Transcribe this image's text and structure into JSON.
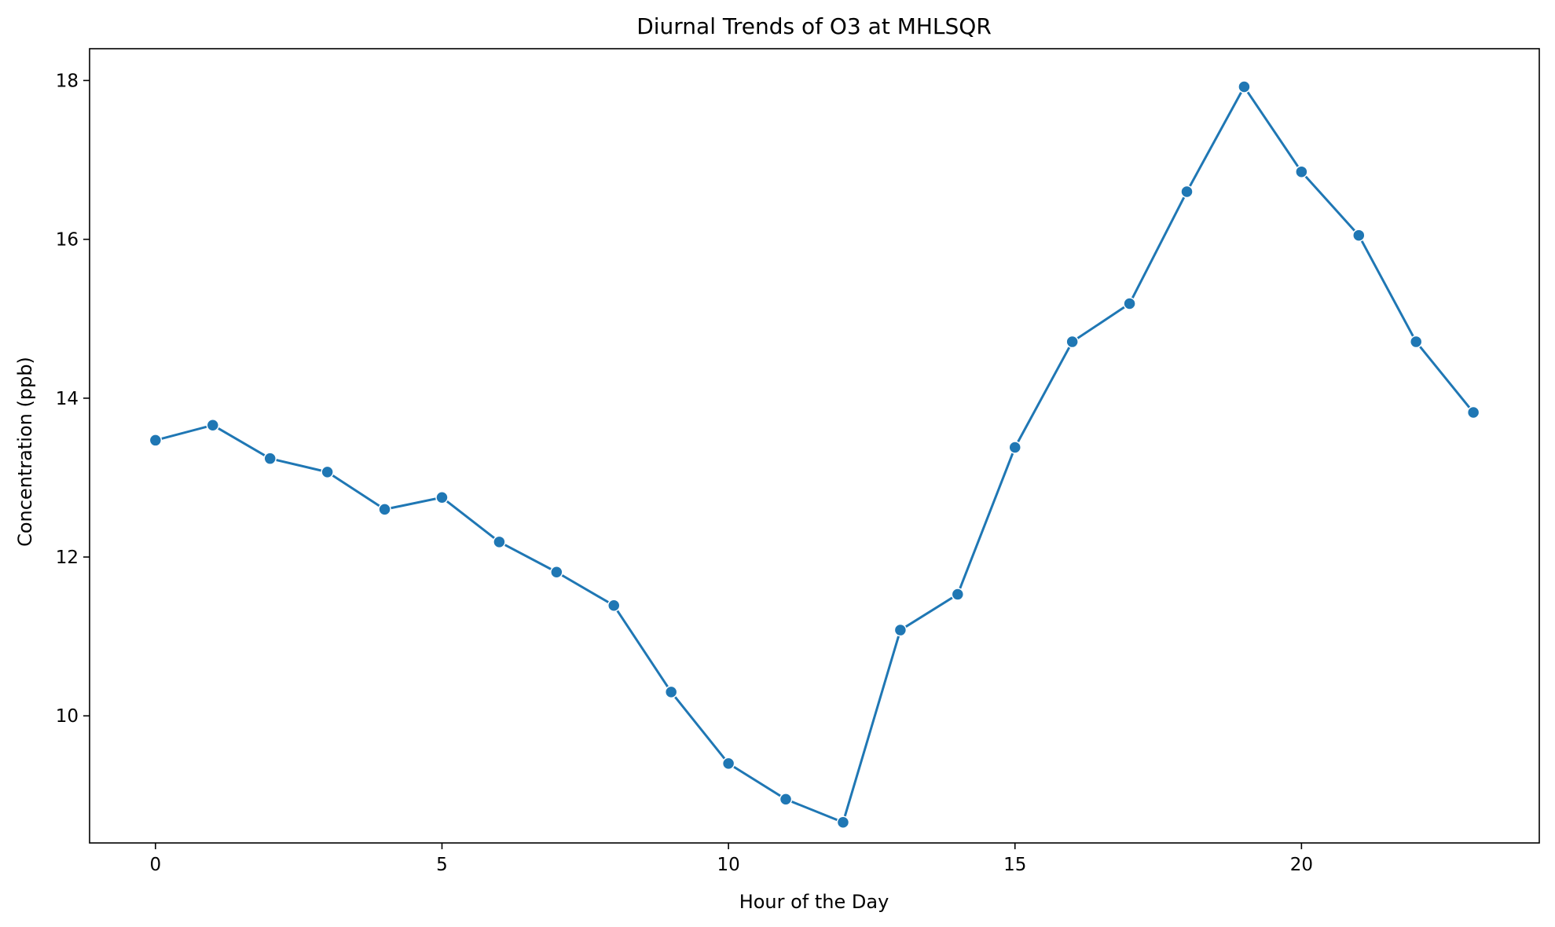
{
  "chart_data": {
    "type": "line",
    "title": "Diurnal Trends of O3 at MHLSQR",
    "xlabel": "Hour of the Day",
    "ylabel": "Concentration (ppb)",
    "x": [
      0,
      1,
      2,
      3,
      4,
      5,
      6,
      7,
      8,
      9,
      10,
      11,
      12,
      13,
      14,
      15,
      16,
      17,
      18,
      19,
      20,
      21,
      22,
      23
    ],
    "series": [
      {
        "values": [
          13.47,
          13.66,
          13.24,
          13.07,
          12.6,
          12.75,
          12.19,
          11.81,
          11.39,
          10.3,
          9.4,
          8.95,
          8.66,
          11.08,
          11.53,
          13.38,
          14.71,
          15.19,
          16.6,
          17.92,
          16.85,
          16.05,
          14.71,
          13.82
        ],
        "color": "#1f77b4"
      }
    ],
    "xlim": [
      -1.15,
      24.15
    ],
    "ylim": [
      8.4,
      18.4
    ],
    "xticks": [
      0,
      5,
      10,
      15,
      20
    ],
    "yticks": [
      10,
      12,
      14,
      16,
      18
    ],
    "grid": false,
    "legend": "none"
  }
}
